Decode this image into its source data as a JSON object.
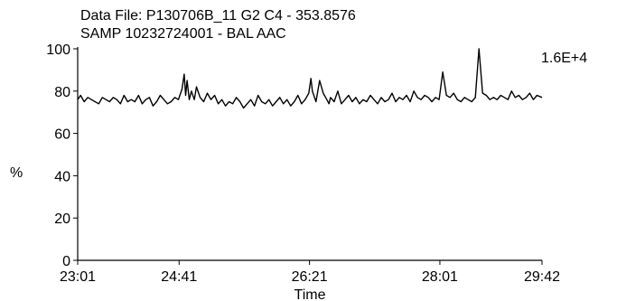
{
  "header": {
    "line1": "Data File: P130706B_11    G2  C4 - 353.8576",
    "line2": "SAMP 10232724001 - BAL AAC"
  },
  "chart_data": {
    "type": "line",
    "xlabel": "Time",
    "ylabel": "%",
    "scale_label": "1.6E+4",
    "xlim": [
      23.01,
      29.42
    ],
    "ylim": [
      0,
      100
    ],
    "x_ticks": [
      {
        "value": 23.01,
        "label": "23:01"
      },
      {
        "value": 24.41,
        "label": "24:41"
      },
      {
        "value": 26.21,
        "label": "26:21"
      },
      {
        "value": 28.01,
        "label": "28:01"
      },
      {
        "value": 29.42,
        "label": "29:42"
      }
    ],
    "y_ticks": [
      {
        "value": 0,
        "label": "0"
      },
      {
        "value": 20,
        "label": "20"
      },
      {
        "value": 40,
        "label": "40"
      },
      {
        "value": 60,
        "label": "60"
      },
      {
        "value": 80,
        "label": "80"
      },
      {
        "value": 100,
        "label": "100"
      }
    ],
    "series": [
      {
        "x": [
          23.01,
          23.05,
          23.1,
          23.15,
          23.2,
          23.25,
          23.3,
          23.35,
          23.4,
          23.45,
          23.5,
          23.55,
          23.6,
          23.65,
          23.7,
          23.75,
          23.8,
          23.85,
          23.9,
          23.95,
          24.0,
          24.05,
          24.1,
          24.15,
          24.2,
          24.25,
          24.3,
          24.35,
          24.4,
          24.45,
          24.48,
          24.5,
          24.52,
          24.55,
          24.58,
          24.62,
          24.65,
          24.7,
          24.75,
          24.8,
          24.85,
          24.9,
          24.95,
          25.0,
          25.05,
          25.1,
          25.15,
          25.2,
          25.25,
          25.3,
          25.35,
          25.4,
          25.45,
          25.5,
          25.55,
          25.6,
          25.65,
          25.7,
          25.75,
          25.8,
          25.85,
          25.9,
          25.95,
          26.0,
          26.05,
          26.1,
          26.15,
          26.2,
          26.23,
          26.25,
          26.28,
          26.3,
          26.35,
          26.4,
          26.45,
          26.48,
          26.5,
          26.55,
          26.6,
          26.65,
          26.7,
          26.75,
          26.8,
          26.85,
          26.9,
          26.95,
          27.0,
          27.05,
          27.1,
          27.15,
          27.2,
          27.25,
          27.3,
          27.35,
          27.4,
          27.45,
          27.5,
          27.55,
          27.6,
          27.65,
          27.7,
          27.75,
          27.8,
          27.85,
          27.9,
          27.95,
          28.0,
          28.05,
          28.1,
          28.15,
          28.2,
          28.25,
          28.3,
          28.35,
          28.4,
          28.45,
          28.5,
          28.55,
          28.6,
          28.65,
          28.7,
          28.75,
          28.8,
          28.85,
          28.9,
          28.95,
          29.0,
          29.05,
          29.1,
          29.15,
          29.2,
          29.25,
          29.3,
          29.35,
          29.42
        ],
        "y": [
          76,
          78,
          75,
          77,
          76,
          75,
          74,
          77,
          76,
          75,
          77,
          76,
          74,
          78,
          75,
          76,
          75,
          78,
          74,
          76,
          77,
          73,
          75,
          78,
          76,
          74,
          75,
          77,
          76,
          81,
          88,
          78,
          85,
          76,
          80,
          76,
          82,
          77,
          75,
          79,
          76,
          78,
          74,
          76,
          73,
          75,
          74,
          77,
          75,
          72,
          74,
          76,
          73,
          78,
          75,
          74,
          76,
          73,
          75,
          77,
          74,
          76,
          73,
          75,
          78,
          74,
          76,
          79,
          86,
          80,
          77,
          75,
          85,
          79,
          76,
          74,
          77,
          75,
          80,
          74,
          76,
          78,
          75,
          77,
          74,
          76,
          75,
          78,
          76,
          74,
          77,
          75,
          76,
          79,
          75,
          77,
          76,
          78,
          75,
          80,
          77,
          76,
          78,
          77,
          75,
          77,
          76,
          89,
          78,
          77,
          79,
          76,
          75,
          77,
          76,
          75,
          77,
          100,
          79,
          78,
          76,
          77,
          76,
          78,
          77,
          76,
          80,
          77,
          78,
          76,
          77,
          79,
          76,
          78,
          77
        ]
      }
    ]
  }
}
